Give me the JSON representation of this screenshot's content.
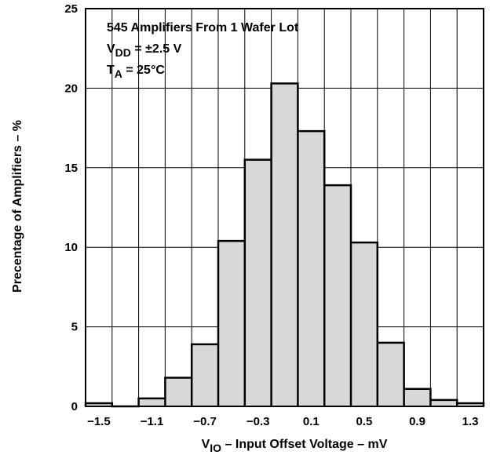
{
  "chart_data": {
    "type": "bar",
    "title": "",
    "xlabel": {
      "main": "V",
      "sub": "IO",
      "rest": " – Input Offset Voltage – mV"
    },
    "ylabel": "Precentage of Amplifiers – %",
    "xlim": [
      -1.6,
      1.4
    ],
    "ylim": [
      0,
      25
    ],
    "grid": true,
    "annotations": [
      {
        "main": "545 Amplifiers From 1 Wafer Lot",
        "sub": "",
        "rest": ""
      },
      {
        "main": "V",
        "sub": "DD",
        "rest": " = ±2.5 V"
      },
      {
        "main": "T",
        "sub": "A",
        "rest": " = 25°C"
      }
    ],
    "x_ticks": [
      "-1.5",
      "-1.1",
      "-0.7",
      "-0.3",
      "0.1",
      "0.5",
      "0.9",
      "1.3"
    ],
    "x_tick_values": [
      -1.5,
      -1.1,
      -0.7,
      -0.3,
      0.1,
      0.5,
      0.9,
      1.3
    ],
    "y_ticks": [
      "0",
      "5",
      "10",
      "15",
      "20",
      "25"
    ],
    "y_tick_values": [
      0,
      5,
      10,
      15,
      20,
      25
    ],
    "bin_edges": [
      -1.6,
      -1.4,
      -1.2,
      -1.0,
      -0.8,
      -0.6,
      -0.4,
      -0.2,
      0.0,
      0.2,
      0.4,
      0.6,
      0.8,
      1.0,
      1.2,
      1.4
    ],
    "values": [
      0.2,
      0.0,
      0.5,
      1.8,
      3.9,
      10.4,
      15.5,
      20.3,
      17.3,
      13.9,
      10.3,
      4.0,
      1.1,
      0.4,
      0.2
    ],
    "bar_color": "#d8d8d8"
  }
}
